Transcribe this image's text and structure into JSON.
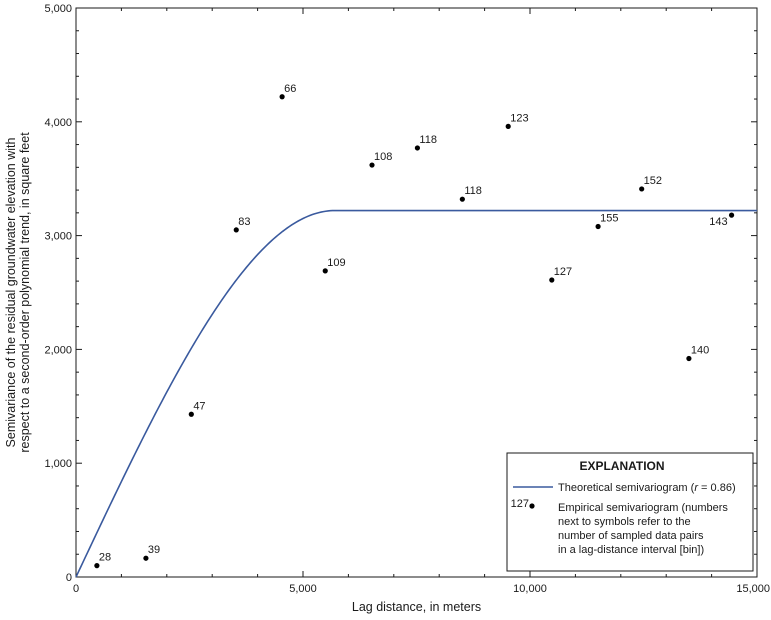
{
  "chart_data": {
    "type": "scatter",
    "xlabel": "Lag distance, in meters",
    "ylabel_line1": "Semivariance of the residual groundwater elevation with",
    "ylabel_line2": "respect to a second-order polynomial trend, in square feet",
    "xlim": [
      0,
      15000
    ],
    "ylim": [
      0,
      5000
    ],
    "x_ticks": [
      0,
      5000,
      10000,
      15000
    ],
    "x_tick_labels": [
      "0",
      "5,000",
      "10,000",
      "15,000"
    ],
    "y_ticks": [
      0,
      1000,
      2000,
      3000,
      4000,
      5000
    ],
    "y_tick_labels": [
      "0",
      "1,000",
      "2,000",
      "3,000",
      "4,000",
      "5,000"
    ],
    "points": [
      {
        "x": 460,
        "y": 100,
        "label": "28"
      },
      {
        "x": 1540,
        "y": 165,
        "label": "39"
      },
      {
        "x": 2540,
        "y": 1430,
        "label": "47"
      },
      {
        "x": 3530,
        "y": 3050,
        "label": "83"
      },
      {
        "x": 4540,
        "y": 4220,
        "label": "66"
      },
      {
        "x": 5490,
        "y": 2690,
        "label": "109"
      },
      {
        "x": 6520,
        "y": 3620,
        "label": "108"
      },
      {
        "x": 7520,
        "y": 3770,
        "label": "118"
      },
      {
        "x": 8510,
        "y": 3320,
        "label": "118"
      },
      {
        "x": 9520,
        "y": 3960,
        "label": "123"
      },
      {
        "x": 10480,
        "y": 2610,
        "label": "127"
      },
      {
        "x": 11500,
        "y": 3080,
        "label": "155"
      },
      {
        "x": 12460,
        "y": 3410,
        "label": "152"
      },
      {
        "x": 13500,
        "y": 1920,
        "label": "140"
      },
      {
        "x": 14440,
        "y": 3180,
        "label": "143"
      }
    ],
    "model": {
      "type": "spherical",
      "nugget": 0,
      "sill": 3220,
      "range": 5700
    },
    "legend": {
      "title": "EXPLANATION",
      "line_label_prefix": "Theoretical semivariogram (",
      "line_label_r": "r",
      "line_label_suffix": " = 0.86)",
      "symbol_example": "127",
      "symbol_text": [
        "Empirical semivariogram (numbers",
        "next to symbols refer to the",
        "number of sampled data pairs",
        "in a lag-distance interval [bin])"
      ],
      "placement": "bottom-right"
    },
    "colors": {
      "line": "#3a5a9e",
      "point": "#000000",
      "axis": "#1a1a1a"
    }
  }
}
